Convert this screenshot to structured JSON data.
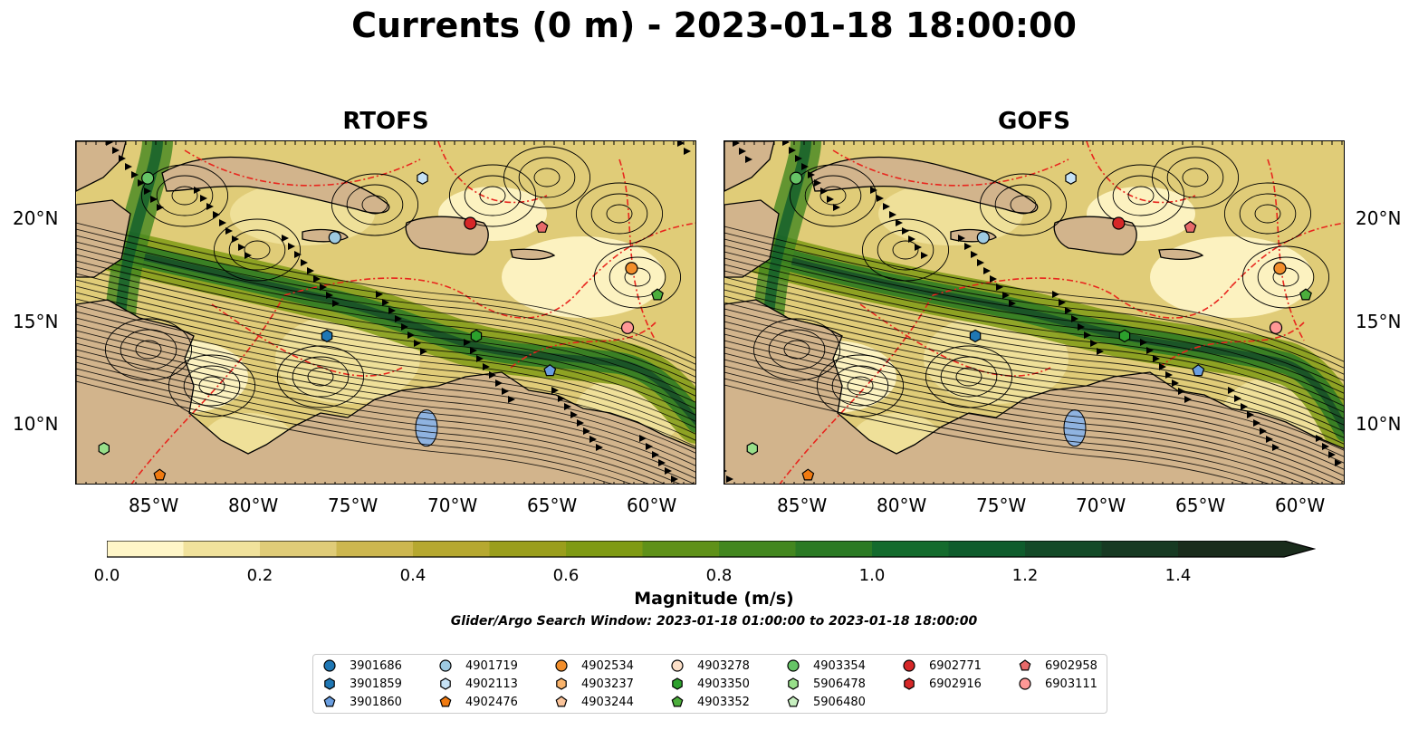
{
  "title": "Currents (0 m) - 2023-01-18 18:00:00",
  "panels": [
    {
      "name": "RTOFS"
    },
    {
      "name": "GOFS"
    }
  ],
  "lon_labels": [
    "85°W",
    "80°W",
    "75°W",
    "70°W",
    "65°W",
    "60°W"
  ],
  "lat_labels": [
    "20°N",
    "15°N",
    "10°N"
  ],
  "colorbar": {
    "label": "Magnitude (m/s)",
    "ticks": [
      "0.0",
      "0.2",
      "0.4",
      "0.6",
      "0.8",
      "1.0",
      "1.2",
      "1.4"
    ],
    "colors": [
      "#fff6c8",
      "#f1e29c",
      "#e0cc78",
      "#cdb74f",
      "#b6a830",
      "#9a9e1c",
      "#7f9a14",
      "#5f9119",
      "#43871f",
      "#2b7a24",
      "#146b2d",
      "#0f5c2c",
      "#144a28",
      "#173a23",
      "#1a2c1c"
    ],
    "extend": "max"
  },
  "subtitle": "Glider/Argo Search Window: 2023-01-18 01:00:00 to 2023-01-18 18:00:00",
  "legend": {
    "columns": [
      [
        {
          "id": "3901686",
          "marker": "circle",
          "color": "#1f77b4"
        },
        {
          "id": "3901859",
          "marker": "hexagon",
          "color": "#1f77b4"
        },
        {
          "id": "3901860",
          "marker": "pentagon",
          "color": "#6a9ee0"
        }
      ],
      [
        {
          "id": "4901719",
          "marker": "circle",
          "color": "#9ecae1"
        },
        {
          "id": "4902113",
          "marker": "hexagon",
          "color": "#c6e2f5"
        },
        {
          "id": "4902476",
          "marker": "pentagon",
          "color": "#f07a10"
        }
      ],
      [
        {
          "id": "4902534",
          "marker": "circle",
          "color": "#f28e2b"
        },
        {
          "id": "4903237",
          "marker": "hexagon",
          "color": "#f9b36b"
        },
        {
          "id": "4903244",
          "marker": "pentagon",
          "color": "#fbc49a"
        }
      ],
      [
        {
          "id": "4903278",
          "marker": "circle",
          "color": "#fde0c8"
        },
        {
          "id": "4903350",
          "marker": "hexagon",
          "color": "#2ca02c"
        },
        {
          "id": "4903352",
          "marker": "pentagon",
          "color": "#4cae3c"
        }
      ],
      [
        {
          "id": "4903354",
          "marker": "circle",
          "color": "#66c466"
        },
        {
          "id": "5906478",
          "marker": "hexagon",
          "color": "#98df8a"
        },
        {
          "id": "5906480",
          "marker": "pentagon",
          "color": "#c7efc0"
        }
      ],
      [
        {
          "id": "6902771",
          "marker": "circle",
          "color": "#d62728"
        },
        {
          "id": "6902916",
          "marker": "hexagon",
          "color": "#d62728"
        }
      ],
      [
        {
          "id": "6902958",
          "marker": "pentagon",
          "color": "#e86a6a"
        },
        {
          "id": "6903111",
          "marker": "circle",
          "color": "#ff9896"
        }
      ]
    ]
  },
  "floats": [
    {
      "id": "4903354",
      "lon": -85.6,
      "lat": 22.0
    },
    {
      "id": "4902113",
      "lon": -71.8,
      "lat": 22.0
    },
    {
      "id": "4901719",
      "lon": -76.2,
      "lat": 19.1
    },
    {
      "id": "6902771",
      "lon": -69.4,
      "lat": 19.8
    },
    {
      "id": "6902958",
      "lon": -65.8,
      "lat": 19.6
    },
    {
      "id": "4902534",
      "lon": -61.3,
      "lat": 17.6
    },
    {
      "id": "4903352",
      "lon": -60.0,
      "lat": 16.3
    },
    {
      "id": "6903111",
      "lon": -61.5,
      "lat": 14.7
    },
    {
      "id": "3901859",
      "lon": -76.6,
      "lat": 14.3
    },
    {
      "id": "4903350",
      "lon": -69.1,
      "lat": 14.3
    },
    {
      "id": "3901860",
      "lon": -65.4,
      "lat": 12.6
    },
    {
      "id": "5906478",
      "lon": -87.8,
      "lat": 8.8
    },
    {
      "id": "4902476",
      "lon": -85.0,
      "lat": 7.5
    }
  ]
}
